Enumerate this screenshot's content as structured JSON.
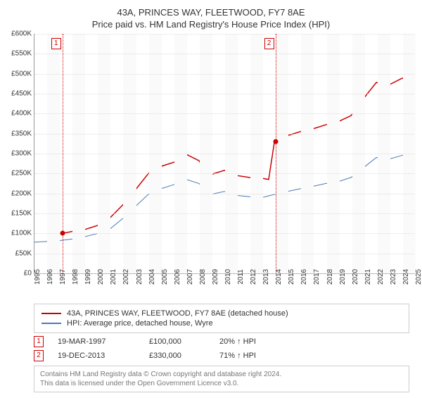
{
  "title": {
    "line1": "43A, PRINCES WAY, FLEETWOOD, FY7 8AE",
    "line2": "Price paid vs. HM Land Registry's House Price Index (HPI)"
  },
  "title_fontsize": 13,
  "chart": {
    "type": "line",
    "ylim": [
      0,
      600
    ],
    "ytick_step": 50,
    "y_prefix": "£",
    "y_suffix": "K",
    "xyears": [
      1995,
      1996,
      1997,
      1998,
      1999,
      2000,
      2001,
      2002,
      2003,
      2004,
      2005,
      2006,
      2007,
      2008,
      2009,
      2010,
      2011,
      2012,
      2013,
      2014,
      2015,
      2016,
      2017,
      2018,
      2019,
      2020,
      2021,
      2022,
      2023,
      2024,
      2025
    ],
    "background_color": "#ffffff",
    "alt_band_color": "#fafafa",
    "grid_color": "#dddddd",
    "series": [
      {
        "name": "43A, PRINCES WAY, FLEETWOOD, FY7 8AE (detached house)",
        "color": "#cc0000",
        "line_width": 1.5,
        "points": [
          [
            1997.2,
            100
          ],
          [
            1998,
            105
          ],
          [
            1999,
            110
          ],
          [
            2000,
            120
          ],
          [
            2001,
            140
          ],
          [
            2002,
            172
          ],
          [
            2003,
            210
          ],
          [
            2004,
            250
          ],
          [
            2005,
            268
          ],
          [
            2006,
            278
          ],
          [
            2007,
            298
          ],
          [
            2008,
            282
          ],
          [
            2008.6,
            252
          ],
          [
            2009,
            248
          ],
          [
            2010,
            258
          ],
          [
            2011,
            245
          ],
          [
            2012,
            240
          ],
          [
            2013,
            238
          ],
          [
            2013.5,
            235
          ],
          [
            2013.96,
            330
          ],
          [
            2014.5,
            340
          ],
          [
            2015,
            345
          ],
          [
            2016,
            355
          ],
          [
            2017,
            362
          ],
          [
            2018,
            372
          ],
          [
            2019,
            380
          ],
          [
            2020,
            395
          ],
          [
            2021,
            438
          ],
          [
            2022,
            478
          ],
          [
            2023,
            472
          ],
          [
            2024,
            488
          ],
          [
            2025,
            498
          ]
        ]
      },
      {
        "name": "HPI: Average price, detached house, Wyre",
        "color": "#4a7ab8",
        "line_width": 1,
        "points": [
          [
            1995,
            78
          ],
          [
            1996,
            80
          ],
          [
            1997,
            82
          ],
          [
            1998,
            86
          ],
          [
            1999,
            92
          ],
          [
            2000,
            100
          ],
          [
            2001,
            112
          ],
          [
            2002,
            138
          ],
          [
            2003,
            168
          ],
          [
            2004,
            198
          ],
          [
            2005,
            212
          ],
          [
            2006,
            222
          ],
          [
            2007,
            235
          ],
          [
            2008,
            225
          ],
          [
            2008.6,
            200
          ],
          [
            2009,
            198
          ],
          [
            2010,
            205
          ],
          [
            2011,
            195
          ],
          [
            2012,
            192
          ],
          [
            2013,
            190
          ],
          [
            2014,
            198
          ],
          [
            2015,
            205
          ],
          [
            2016,
            212
          ],
          [
            2017,
            218
          ],
          [
            2018,
            225
          ],
          [
            2019,
            230
          ],
          [
            2020,
            240
          ],
          [
            2021,
            265
          ],
          [
            2022,
            290
          ],
          [
            2023,
            286
          ],
          [
            2024,
            295
          ],
          [
            2025,
            302
          ]
        ]
      }
    ],
    "markers": [
      {
        "id": "1",
        "year": 1997.2,
        "value": 100,
        "color": "#cc0000"
      },
      {
        "id": "2",
        "year": 2013.96,
        "value": 330,
        "color": "#cc0000"
      }
    ]
  },
  "legend": {
    "items": [
      {
        "color": "#cc0000",
        "label": "43A, PRINCES WAY, FLEETWOOD, FY7 8AE (detached house)"
      },
      {
        "color": "#4a7ab8",
        "label": "HPI: Average price, detached house, Wyre"
      }
    ]
  },
  "sales": [
    {
      "id": "1",
      "date": "19-MAR-1997",
      "price": "£100,000",
      "hpi": "20% ↑ HPI"
    },
    {
      "id": "2",
      "date": "19-DEC-2013",
      "price": "£330,000",
      "hpi": "71% ↑ HPI"
    }
  ],
  "attribution": {
    "line1": "Contains HM Land Registry data © Crown copyright and database right 2024.",
    "line2": "This data is licensed under the Open Government Licence v3.0."
  }
}
